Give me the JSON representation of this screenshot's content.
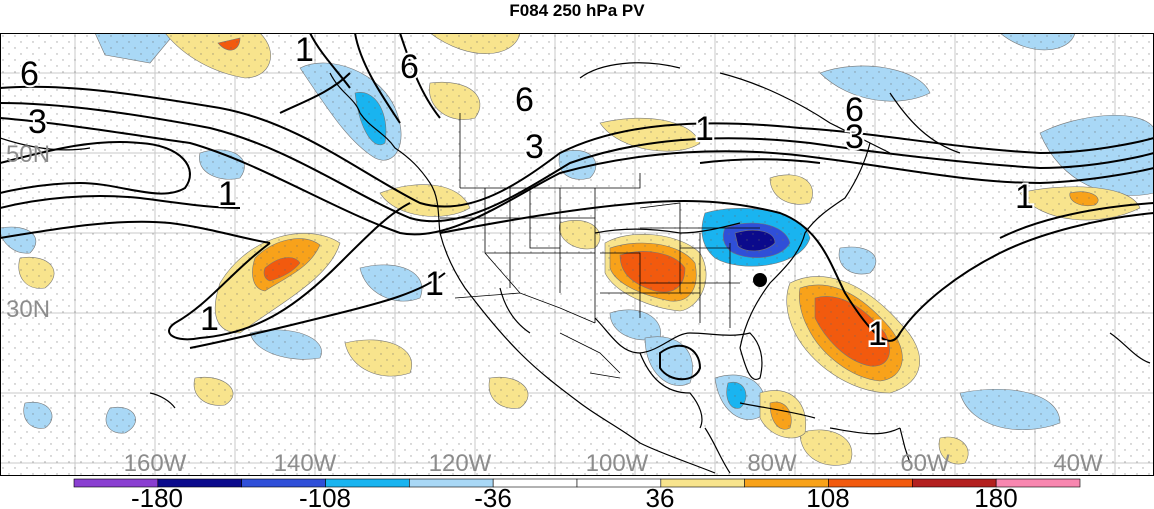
{
  "title": "F084 250 hPa PV",
  "lat_labels": [
    "50N",
    "30N"
  ],
  "lon_labels": [
    "160W",
    "140W",
    "120W",
    "100W",
    "80W",
    "60W",
    "40W"
  ],
  "contour_labels": [
    "6",
    "3",
    "6",
    "6",
    "3",
    "6",
    "3",
    "1",
    "1",
    "1",
    "1",
    "1",
    "1",
    "1"
  ],
  "colorbar": {
    "tick_labels": [
      "-180",
      "-108",
      "-36",
      "36",
      "108",
      "180"
    ],
    "colors": [
      "#8a3fd1",
      "#0b0a8c",
      "#2f4fd8",
      "#19b4f0",
      "#a9d8f6",
      "#ffffff",
      "#ffffff",
      "#f8e48d",
      "#f8a21a",
      "#f25a0e",
      "#b3201f",
      "#f887b0"
    ]
  },
  "marker": "filled-circle"
}
